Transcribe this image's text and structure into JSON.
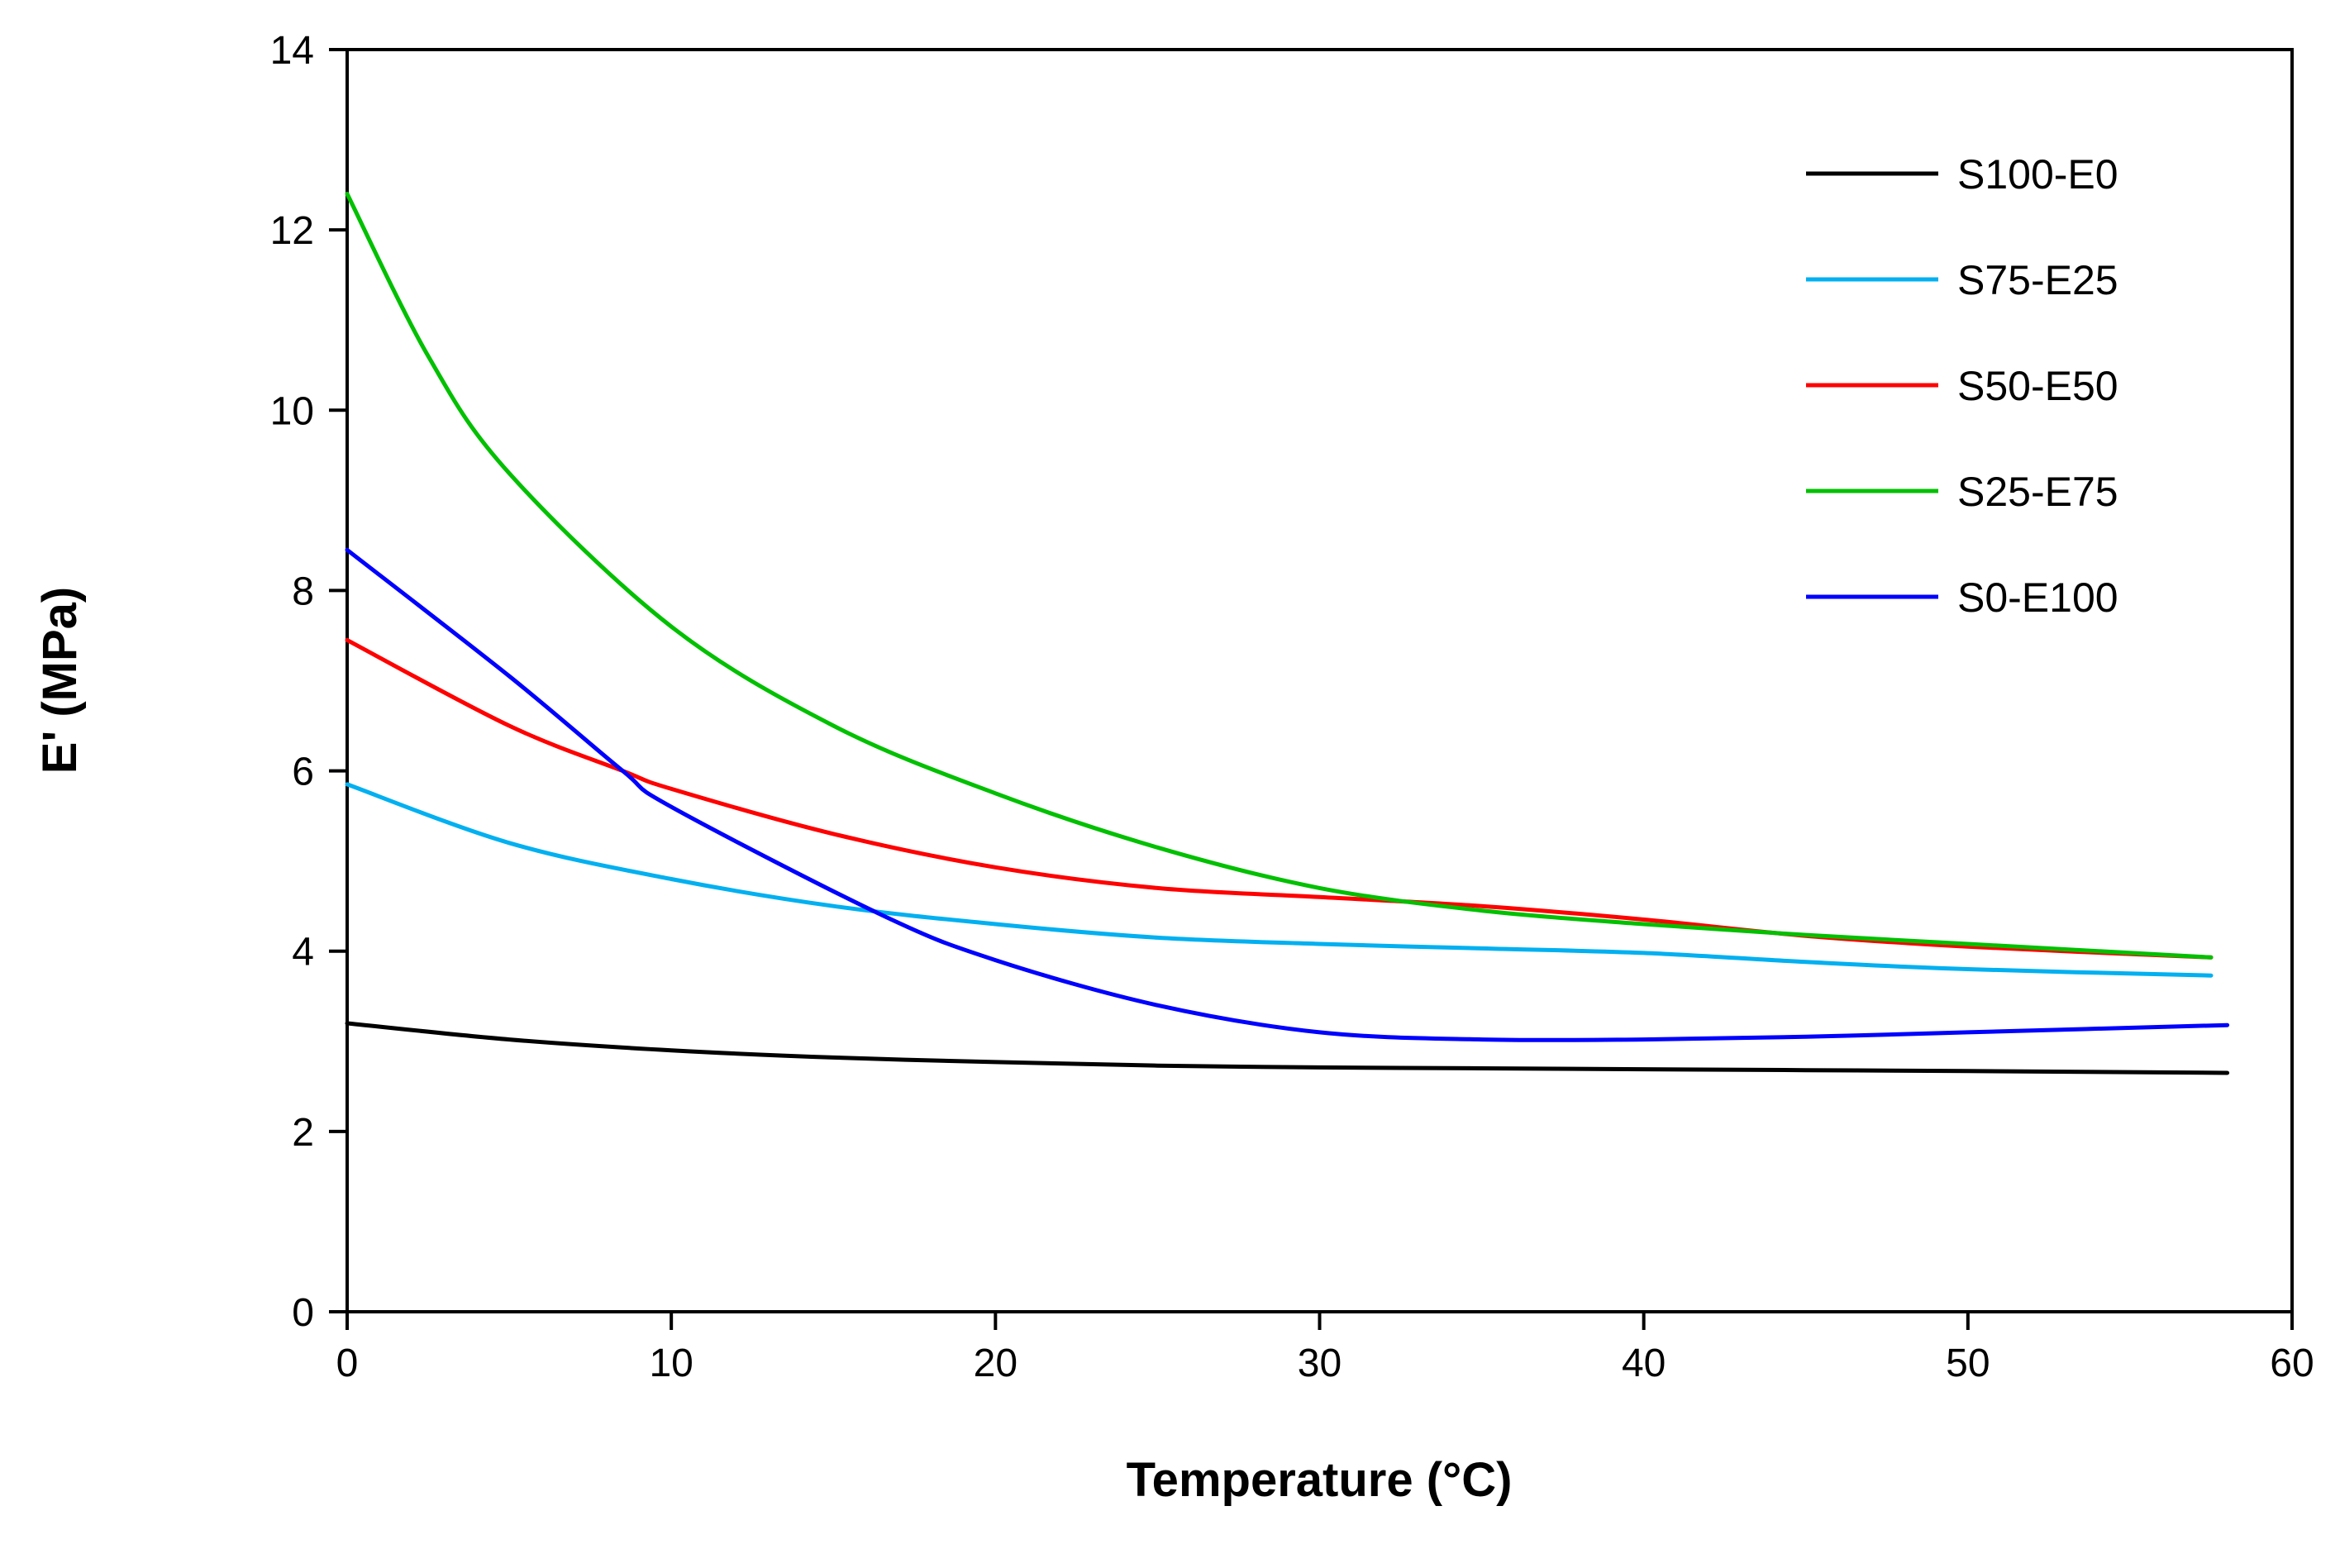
{
  "chart_data": {
    "type": "line",
    "title": "",
    "xlabel": "Temperature (°C)",
    "ylabel": "E' (MPa)",
    "xlim": [
      0,
      60
    ],
    "ylim": [
      0,
      14
    ],
    "xticks": [
      0,
      10,
      20,
      30,
      40,
      50,
      60
    ],
    "yticks": [
      0,
      2,
      4,
      6,
      8,
      10,
      12,
      14
    ],
    "grid": false,
    "legend_position": "top-right",
    "series": [
      {
        "name": "S100-E0",
        "color": "#000000",
        "x": [
          0,
          5,
          10,
          15,
          20,
          25,
          30,
          35,
          40,
          45,
          50,
          58
        ],
        "y": [
          3.2,
          3.02,
          2.9,
          2.82,
          2.77,
          2.73,
          2.71,
          2.7,
          2.69,
          2.68,
          2.67,
          2.65
        ]
      },
      {
        "name": "S75-E25",
        "color": "#00b0f0",
        "x": [
          0,
          5,
          10,
          15,
          20,
          25,
          30,
          35,
          40,
          45,
          50,
          57.5
        ],
        "y": [
          5.85,
          5.2,
          4.8,
          4.5,
          4.3,
          4.15,
          4.08,
          4.03,
          3.98,
          3.88,
          3.8,
          3.73
        ]
      },
      {
        "name": "S50-E50",
        "color": "#ff0000",
        "x": [
          0,
          5,
          8.5,
          10,
          15,
          20,
          25,
          30,
          35,
          40,
          45,
          50,
          57.5
        ],
        "y": [
          7.45,
          6.5,
          6.0,
          5.8,
          5.3,
          4.93,
          4.7,
          4.6,
          4.5,
          4.35,
          4.17,
          4.05,
          3.93
        ]
      },
      {
        "name": "S25-E75",
        "color": "#00c000",
        "x": [
          0,
          2.5,
          5,
          10,
          15,
          20,
          25,
          30,
          35,
          40,
          45,
          50,
          57.5
        ],
        "y": [
          12.4,
          10.6,
          9.3,
          7.6,
          6.5,
          5.75,
          5.15,
          4.7,
          4.45,
          4.3,
          4.18,
          4.08,
          3.93
        ]
      },
      {
        "name": "S0-E100",
        "color": "#0000ff",
        "x": [
          0,
          5,
          8.5,
          10,
          16.5,
          20,
          25,
          30,
          35,
          40,
          45,
          50,
          58
        ],
        "y": [
          8.45,
          7.05,
          6.0,
          5.6,
          4.4,
          3.9,
          3.4,
          3.1,
          3.02,
          3.02,
          3.05,
          3.1,
          3.18
        ]
      }
    ]
  }
}
